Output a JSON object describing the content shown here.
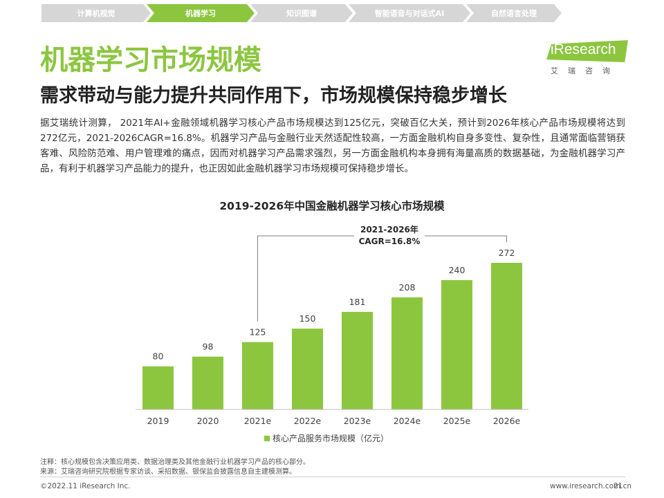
{
  "nav": {
    "items": [
      "计算机视觉",
      "机器学习",
      "知识图谱",
      "智能语音与对话式AI",
      "自然语言处理"
    ],
    "active_index": 1
  },
  "header": {
    "title": "机器学习市场规模",
    "subtitle": "需求带动与能力提升共同作用下，市场规模保持稳步增长"
  },
  "logo": {
    "brand": "iResearch",
    "cn": "艾瑞咨询"
  },
  "body_text": "据艾瑞统计测算， 2021年AI+金融领域机器学习核心产品市场规模达到125亿元，突破百亿大关，预计到2026年核心产品市场规模将达到272亿元，2021-2026CAGR=16.8%。机器学习产品与金融行业天然适配性较高，一方面金融机构自身多变性、复杂性，且通常面临营销获客难、风险防范难、用户管理难的痛点，因而对机器学习产品需求强烈，另一方面金融机构本身拥有海量高质的数据基础，为金融机器学习产品，有利于机器学习产品能力的提升，也正因如此金融机器学习市场规模可保持稳步增长。",
  "chart_data": {
    "type": "bar",
    "title": "2019-2026年中国金融机器学习核心市场规模",
    "categories": [
      "2019",
      "2020",
      "2021e",
      "2022e",
      "2023e",
      "2024e",
      "2025e",
      "2026e"
    ],
    "series": [
      {
        "name": "核心产品服务市场规模（亿元）",
        "values": [
          80,
          98,
          125,
          150,
          181,
          208,
          240,
          272
        ]
      }
    ],
    "ylim": [
      0,
      272
    ],
    "annotation": {
      "line1": "2021-2026年",
      "line2": "CAGR=16.8%",
      "from": "2021e",
      "to": "2026e"
    },
    "legend_position": "bottom",
    "grid": false,
    "bar_color": "#8cc63f"
  },
  "footnotes": {
    "note": "注释：核心规模包含决策应用类、数据治理类及其他金融行业机器学习产品的核心部分。",
    "source": "来源：艾瑞咨询研究院根据专家访谈、采招数据、银保监会披露信息自主建模测算。"
  },
  "footer": {
    "copyright": "©2022.11 iResearch Inc.",
    "website": "www.iresearch.com.cn",
    "page": "21"
  }
}
